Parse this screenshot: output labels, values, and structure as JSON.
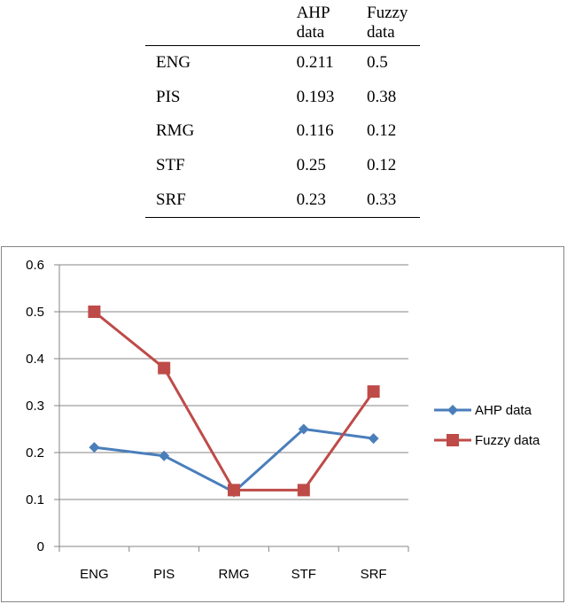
{
  "table": {
    "headers": [
      "",
      "AHP data",
      "Fuzzy data"
    ],
    "rows": [
      {
        "label": "ENG",
        "ahp": "0.211",
        "fuzzy": "0.5"
      },
      {
        "label": "PIS",
        "ahp": "0.193",
        "fuzzy": "0.38"
      },
      {
        "label": "RMG",
        "ahp": "0.116",
        "fuzzy": "0.12"
      },
      {
        "label": "STF",
        "ahp": "0.25",
        "fuzzy": "0.12"
      },
      {
        "label": "SRF",
        "ahp": "0.23",
        "fuzzy": "0.33"
      }
    ]
  },
  "chart_data": {
    "type": "line",
    "title": "",
    "xlabel": "",
    "ylabel": "",
    "categories": [
      "ENG",
      "PIS",
      "RMG",
      "STF",
      "SRF"
    ],
    "ylim": [
      0,
      0.6
    ],
    "yticks": [
      0,
      0.1,
      0.2,
      0.3,
      0.4,
      0.5,
      0.6
    ],
    "ytick_labels": [
      "0",
      "0.1",
      "0.2",
      "0.3",
      "0.4",
      "0.5",
      "0.6"
    ],
    "grid": true,
    "legend": "right",
    "series": [
      {
        "name": "AHP data",
        "values": [
          0.211,
          0.193,
          0.116,
          0.25,
          0.23
        ],
        "color": "#4a7ebb",
        "marker": "diamond"
      },
      {
        "name": "Fuzzy data",
        "values": [
          0.5,
          0.38,
          0.12,
          0.12,
          0.33
        ],
        "color": "#be4b48",
        "marker": "square"
      }
    ]
  }
}
